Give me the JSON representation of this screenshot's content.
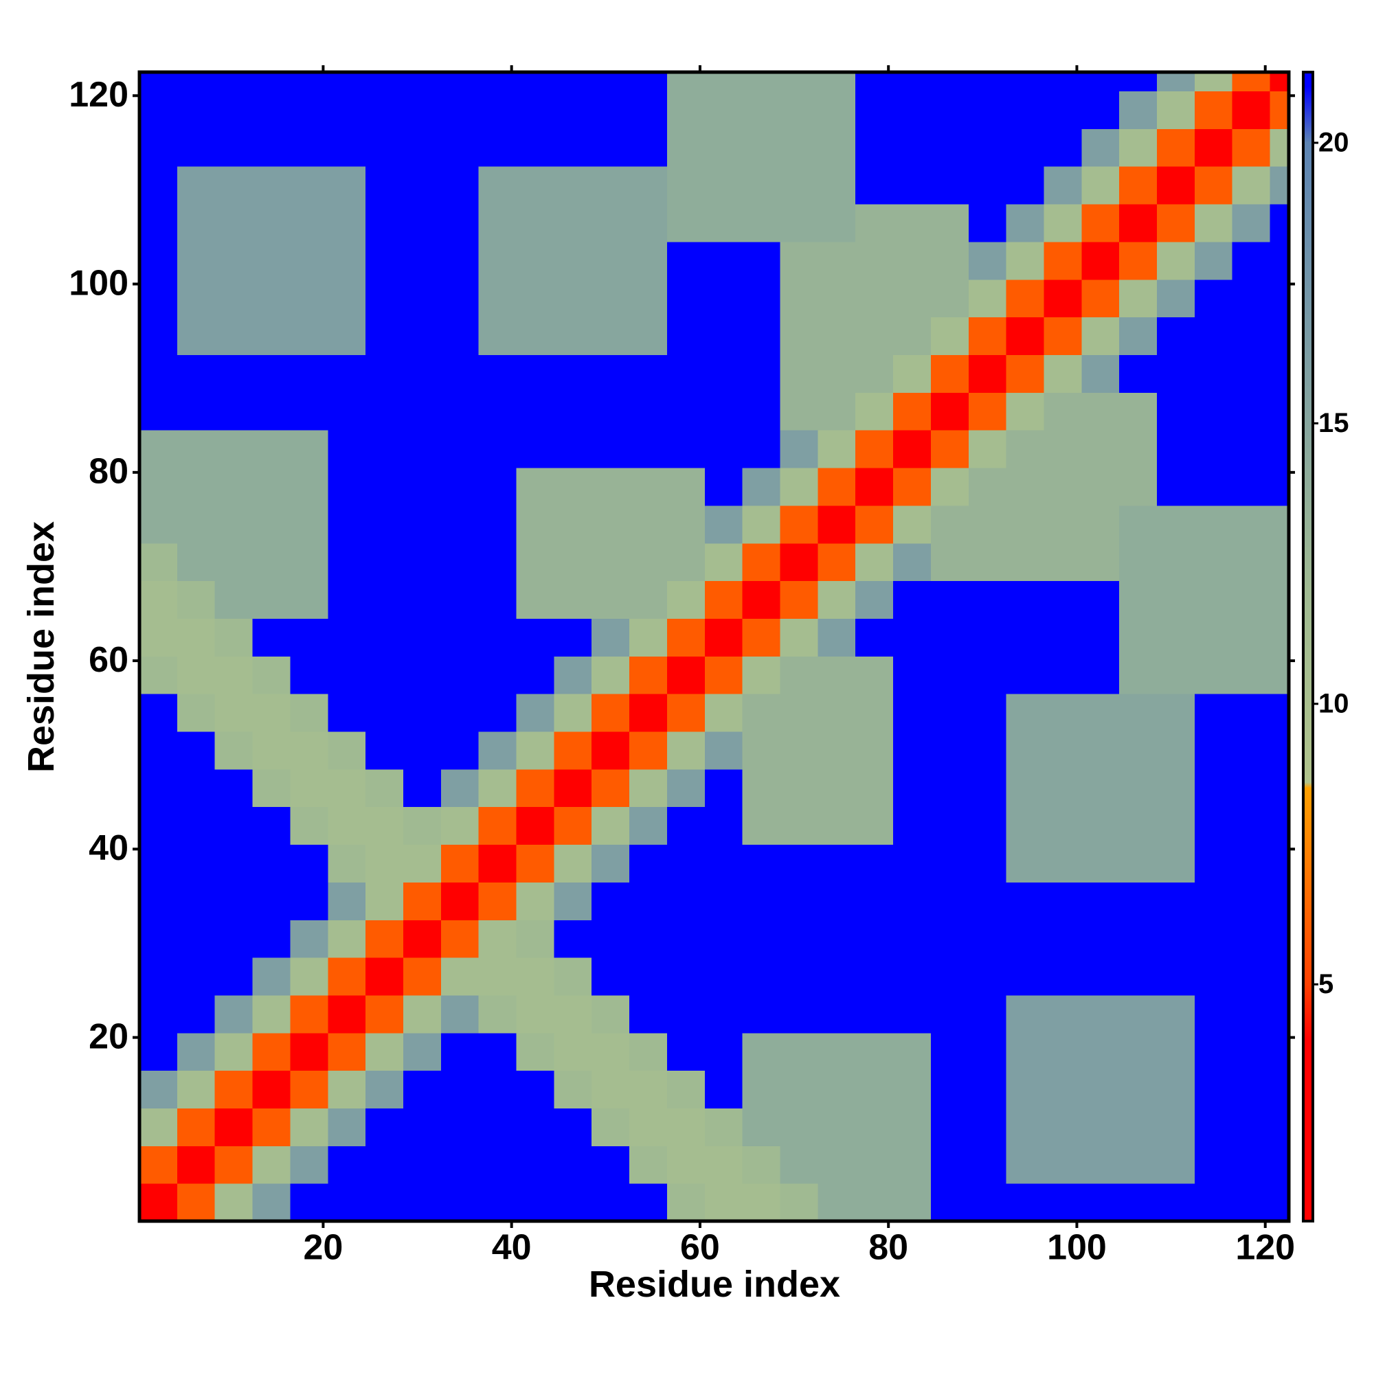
{
  "chart_data": {
    "type": "heatmap",
    "xlabel": "Residue index",
    "ylabel": "Residue index",
    "xlim": [
      0.5,
      122.5
    ],
    "ylim": [
      0.5,
      122.5
    ],
    "xticks": [
      20,
      40,
      60,
      80,
      100,
      120
    ],
    "yticks": [
      20,
      40,
      60,
      80,
      100,
      120
    ],
    "xbins": [
      0.5,
      4.5,
      8.5,
      12.5,
      16.5,
      20.5,
      24.5,
      28.5,
      32.5,
      36.5,
      40.5,
      44.5,
      48.5,
      52.5,
      56.5,
      60.5,
      64.5,
      68.5,
      72.5,
      76.5,
      80.5,
      84.5,
      88.5,
      92.5,
      96.5,
      100.5,
      104.5,
      108.5,
      112.5,
      116.5,
      120.5,
      122.5
    ],
    "ybins": [
      0.5,
      4.5,
      8.5,
      12.5,
      16.5,
      20.5,
      24.5,
      28.5,
      32.5,
      36.5,
      40.5,
      44.5,
      48.5,
      52.5,
      56.5,
      60.5,
      64.5,
      68.5,
      72.5,
      76.5,
      80.5,
      84.5,
      88.5,
      92.5,
      96.5,
      100.5,
      104.5,
      108.5,
      112.5,
      116.5,
      120.5,
      122.5
    ],
    "clim": [
      0.78,
      21.26
    ],
    "cticks": [
      5,
      10,
      15,
      20
    ],
    "colorscale": [
      [
        0.78,
        "#ff0000"
      ],
      [
        4,
        "#ff0000"
      ],
      [
        5,
        "#ff4000"
      ],
      [
        8.5,
        "#ffa000"
      ],
      [
        8.6,
        "#b0c38c"
      ],
      [
        12,
        "#a0ba92"
      ],
      [
        20,
        "#5d84b3"
      ],
      [
        21,
        "#0000ff"
      ],
      [
        21.26,
        "#0000ff"
      ]
    ],
    "z": [
      [
        2,
        6,
        11,
        16,
        22,
        22,
        22,
        22,
        22,
        22,
        22,
        22,
        22,
        22,
        12,
        11,
        11,
        12,
        14,
        14,
        14,
        22,
        22,
        22,
        22,
        22,
        22,
        22,
        22,
        22,
        22
      ],
      [
        6,
        2,
        6,
        11,
        16,
        22,
        22,
        22,
        22,
        22,
        22,
        22,
        22,
        12,
        11,
        11,
        12,
        14,
        14,
        14,
        14,
        22,
        22,
        16,
        16,
        16,
        16,
        16,
        22,
        22,
        22
      ],
      [
        11,
        6,
        2,
        6,
        11,
        16,
        22,
        22,
        22,
        22,
        22,
        22,
        12,
        11,
        11,
        12,
        14,
        14,
        14,
        14,
        14,
        22,
        22,
        16,
        16,
        16,
        16,
        16,
        22,
        22,
        22
      ],
      [
        16,
        11,
        6,
        2,
        6,
        11,
        16,
        22,
        22,
        22,
        22,
        12,
        11,
        11,
        12,
        22,
        14,
        14,
        14,
        14,
        14,
        22,
        22,
        16,
        16,
        16,
        16,
        16,
        22,
        22,
        22
      ],
      [
        22,
        16,
        11,
        6,
        2,
        6,
        11,
        16,
        22,
        22,
        12,
        11,
        11,
        12,
        22,
        22,
        14,
        14,
        14,
        14,
        14,
        22,
        22,
        16,
        16,
        16,
        16,
        16,
        22,
        22,
        22
      ],
      [
        22,
        22,
        16,
        11,
        6,
        2,
        6,
        11,
        16,
        12,
        11,
        11,
        12,
        22,
        22,
        22,
        22,
        22,
        22,
        22,
        22,
        22,
        22,
        16,
        16,
        16,
        16,
        16,
        22,
        22,
        22
      ],
      [
        22,
        22,
        22,
        16,
        11,
        6,
        2,
        6,
        11,
        11,
        11,
        12,
        22,
        22,
        22,
        22,
        22,
        22,
        22,
        22,
        22,
        22,
        22,
        22,
        22,
        22,
        22,
        22,
        22,
        22,
        22
      ],
      [
        22,
        22,
        22,
        22,
        16,
        11,
        6,
        2,
        6,
        11,
        12,
        22,
        22,
        22,
        22,
        22,
        22,
        22,
        22,
        22,
        22,
        22,
        22,
        22,
        22,
        22,
        22,
        22,
        22,
        22,
        22
      ],
      [
        22,
        22,
        22,
        22,
        22,
        16,
        11,
        6,
        2,
        6,
        11,
        16,
        22,
        22,
        22,
        22,
        22,
        22,
        22,
        22,
        22,
        22,
        22,
        22,
        22,
        22,
        22,
        22,
        22,
        22,
        22
      ],
      [
        22,
        22,
        22,
        22,
        22,
        12,
        11,
        11,
        6,
        2,
        6,
        11,
        16,
        22,
        22,
        22,
        22,
        22,
        22,
        22,
        22,
        22,
        22,
        15,
        15,
        15,
        15,
        15,
        22,
        22,
        22
      ],
      [
        22,
        22,
        22,
        22,
        12,
        11,
        11,
        12,
        11,
        6,
        2,
        6,
        11,
        16,
        22,
        22,
        13,
        13,
        13,
        13,
        22,
        22,
        22,
        15,
        15,
        15,
        15,
        15,
        22,
        22,
        22
      ],
      [
        22,
        22,
        22,
        12,
        11,
        11,
        12,
        22,
        16,
        11,
        6,
        2,
        6,
        11,
        16,
        22,
        13,
        13,
        13,
        13,
        22,
        22,
        22,
        15,
        15,
        15,
        15,
        15,
        22,
        22,
        22
      ],
      [
        22,
        22,
        12,
        11,
        11,
        12,
        22,
        22,
        22,
        16,
        11,
        6,
        2,
        6,
        11,
        16,
        13,
        13,
        13,
        13,
        22,
        22,
        22,
        15,
        15,
        15,
        15,
        15,
        22,
        22,
        22
      ],
      [
        22,
        12,
        11,
        11,
        12,
        22,
        22,
        22,
        22,
        22,
        16,
        11,
        6,
        2,
        6,
        11,
        13,
        13,
        13,
        13,
        22,
        22,
        22,
        15,
        15,
        15,
        15,
        15,
        22,
        22,
        22
      ],
      [
        12,
        11,
        11,
        12,
        22,
        22,
        22,
        22,
        22,
        22,
        22,
        16,
        11,
        6,
        2,
        6,
        11,
        13,
        13,
        13,
        22,
        22,
        22,
        22,
        22,
        22,
        14,
        14,
        14,
        14,
        14
      ],
      [
        11,
        11,
        12,
        22,
        22,
        22,
        22,
        22,
        22,
        22,
        22,
        22,
        16,
        11,
        6,
        2,
        6,
        11,
        16,
        22,
        22,
        22,
        22,
        22,
        22,
        22,
        14,
        14,
        14,
        14,
        14
      ],
      [
        11,
        12,
        14,
        14,
        14,
        22,
        22,
        22,
        22,
        22,
        13,
        13,
        13,
        13,
        11,
        6,
        2,
        6,
        11,
        16,
        22,
        22,
        22,
        22,
        22,
        22,
        14,
        14,
        14,
        14,
        14
      ],
      [
        12,
        14,
        14,
        14,
        14,
        22,
        22,
        22,
        22,
        22,
        13,
        13,
        13,
        13,
        13,
        11,
        6,
        2,
        6,
        11,
        16,
        13,
        13,
        13,
        13,
        13,
        14,
        14,
        14,
        14,
        14
      ],
      [
        14,
        14,
        14,
        14,
        14,
        22,
        22,
        22,
        22,
        22,
        13,
        13,
        13,
        13,
        13,
        16,
        11,
        6,
        2,
        6,
        11,
        13,
        13,
        13,
        13,
        13,
        14,
        14,
        14,
        14,
        14
      ],
      [
        14,
        14,
        14,
        14,
        14,
        22,
        22,
        22,
        22,
        22,
        13,
        13,
        13,
        13,
        13,
        22,
        16,
        11,
        6,
        2,
        6,
        11,
        13,
        13,
        13,
        13,
        13,
        22,
        22,
        22,
        22
      ],
      [
        14,
        14,
        14,
        14,
        14,
        22,
        22,
        22,
        22,
        22,
        22,
        22,
        22,
        22,
        22,
        22,
        22,
        16,
        11,
        6,
        2,
        6,
        11,
        13,
        13,
        13,
        13,
        22,
        22,
        22,
        22
      ],
      [
        22,
        22,
        22,
        22,
        22,
        22,
        22,
        22,
        22,
        22,
        22,
        22,
        22,
        22,
        22,
        22,
        22,
        13,
        13,
        11,
        6,
        2,
        6,
        11,
        13,
        13,
        13,
        22,
        22,
        22,
        22
      ],
      [
        22,
        22,
        22,
        22,
        22,
        22,
        22,
        22,
        22,
        22,
        22,
        22,
        22,
        22,
        22,
        22,
        22,
        13,
        13,
        13,
        11,
        6,
        2,
        6,
        11,
        16,
        22,
        22,
        22,
        22,
        22
      ],
      [
        22,
        16,
        16,
        16,
        16,
        16,
        22,
        22,
        22,
        15,
        15,
        15,
        15,
        15,
        22,
        22,
        22,
        13,
        13,
        13,
        13,
        11,
        6,
        2,
        6,
        11,
        16,
        22,
        22,
        22,
        22
      ],
      [
        22,
        16,
        16,
        16,
        16,
        16,
        22,
        22,
        22,
        15,
        15,
        15,
        15,
        15,
        22,
        22,
        22,
        13,
        13,
        13,
        13,
        13,
        11,
        6,
        2,
        6,
        11,
        16,
        22,
        22,
        22
      ],
      [
        22,
        16,
        16,
        16,
        16,
        16,
        22,
        22,
        22,
        15,
        15,
        15,
        15,
        15,
        22,
        22,
        22,
        13,
        13,
        13,
        13,
        13,
        16,
        11,
        6,
        2,
        6,
        11,
        16,
        22,
        22
      ],
      [
        22,
        16,
        16,
        16,
        16,
        16,
        22,
        22,
        22,
        15,
        15,
        15,
        15,
        15,
        14,
        14,
        14,
        14,
        14,
        13,
        13,
        13,
        22,
        16,
        11,
        6,
        2,
        6,
        11,
        16,
        22
      ],
      [
        22,
        16,
        16,
        16,
        16,
        16,
        22,
        22,
        22,
        15,
        15,
        15,
        15,
        15,
        14,
        14,
        14,
        14,
        14,
        22,
        22,
        22,
        22,
        22,
        16,
        11,
        6,
        2,
        6,
        11,
        16
      ],
      [
        22,
        22,
        22,
        22,
        22,
        22,
        22,
        22,
        22,
        22,
        22,
        22,
        22,
        22,
        14,
        14,
        14,
        14,
        14,
        22,
        22,
        22,
        22,
        22,
        22,
        16,
        11,
        6,
        2,
        6,
        11
      ],
      [
        22,
        22,
        22,
        22,
        22,
        22,
        22,
        22,
        22,
        22,
        22,
        22,
        22,
        22,
        14,
        14,
        14,
        14,
        14,
        22,
        22,
        22,
        22,
        22,
        22,
        22,
        16,
        11,
        6,
        2,
        6
      ],
      [
        22,
        22,
        22,
        22,
        22,
        22,
        22,
        22,
        22,
        22,
        22,
        22,
        22,
        22,
        14,
        14,
        14,
        14,
        14,
        22,
        22,
        22,
        22,
        22,
        22,
        22,
        22,
        16,
        11,
        6,
        2
      ]
    ]
  }
}
